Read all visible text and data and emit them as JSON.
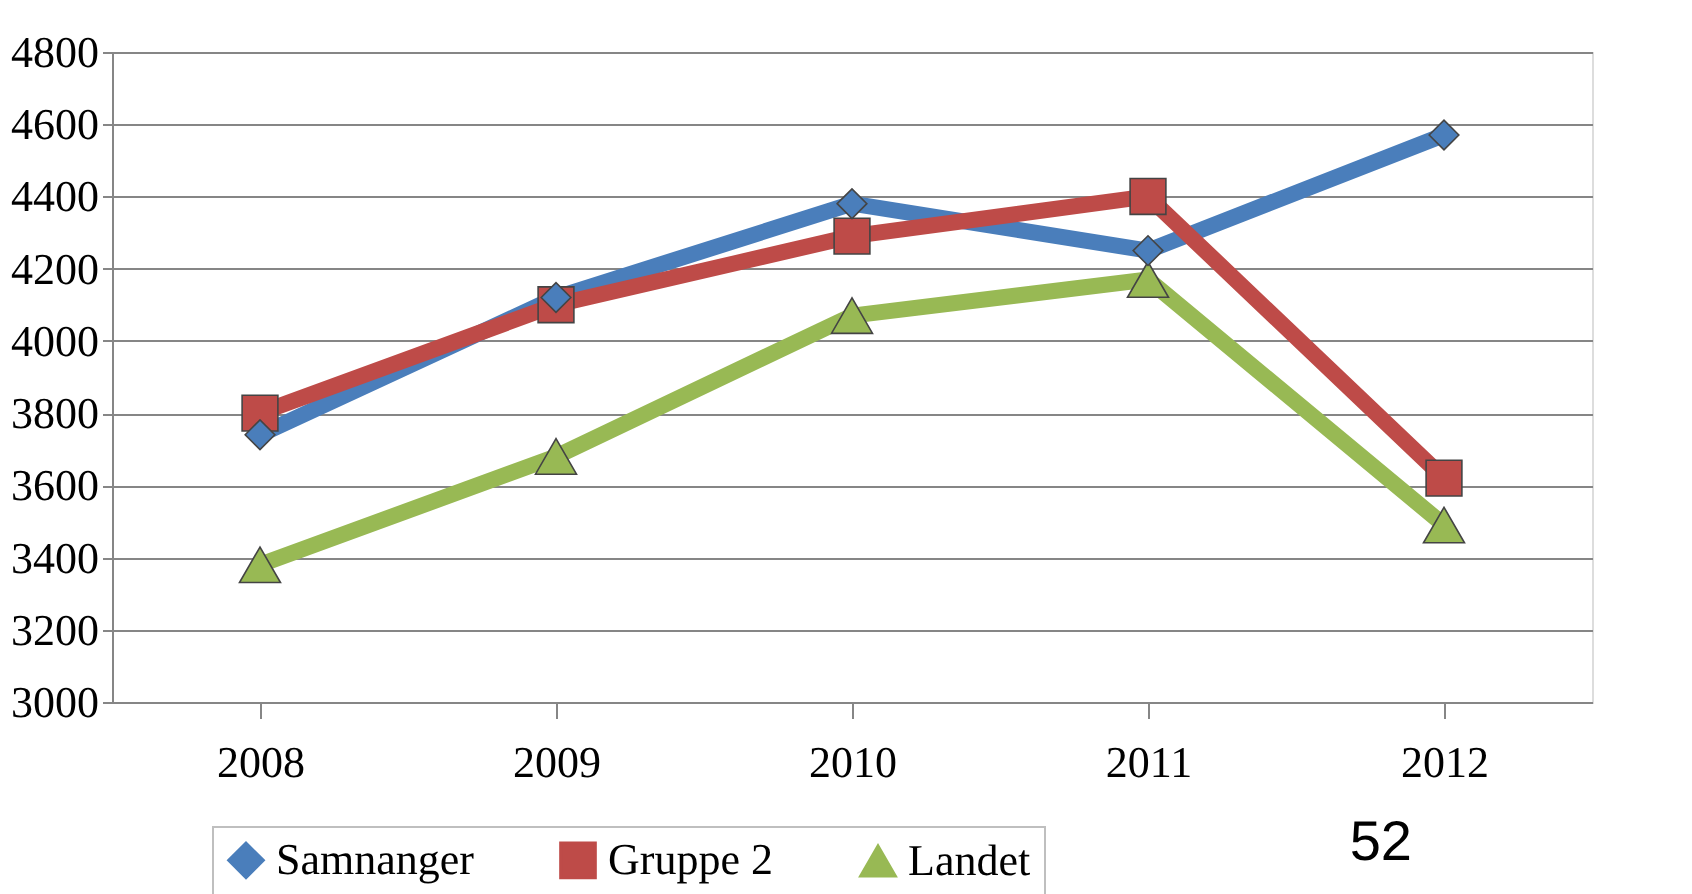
{
  "chart_data": {
    "type": "line",
    "categories": [
      "2008",
      "2009",
      "2010",
      "2011",
      "2012"
    ],
    "series": [
      {
        "name": "Samnanger",
        "color": "#4a7ebb",
        "marker": "diamond",
        "values": [
          3740,
          4120,
          4380,
          4250,
          4570
        ]
      },
      {
        "name": "Gruppe 2",
        "color": "#be4b48",
        "marker": "square",
        "values": [
          3800,
          4100,
          4290,
          4400,
          3620
        ]
      },
      {
        "name": "Landet",
        "color": "#98b954",
        "marker": "triangle",
        "values": [
          3380,
          3680,
          4070,
          4170,
          3490
        ]
      }
    ],
    "ylim": [
      3000,
      4800
    ],
    "yticks": [
      3000,
      3200,
      3400,
      3600,
      3800,
      4000,
      4200,
      4400,
      4600,
      4800
    ],
    "grid": "y",
    "legend": "bottom",
    "line_style": "solid",
    "annotations": [
      "52"
    ]
  }
}
